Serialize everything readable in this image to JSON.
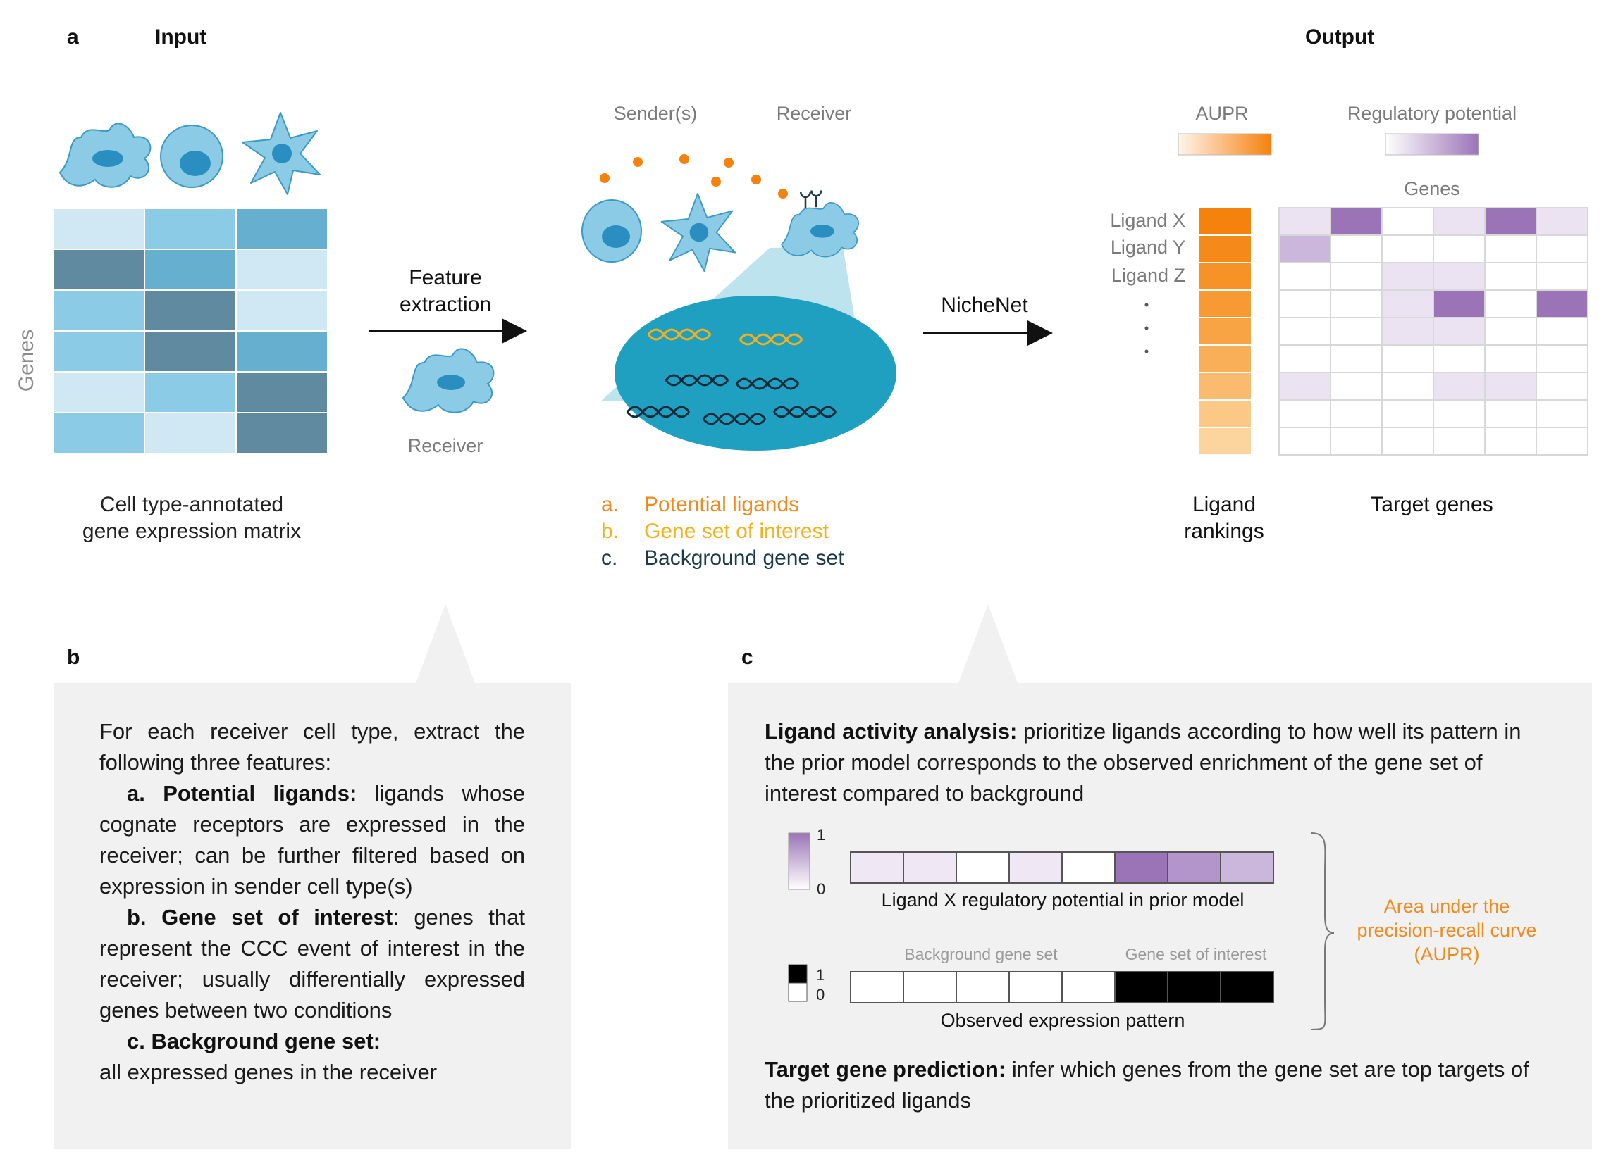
{
  "panel_a": {
    "letter": "a",
    "input_title": "Input",
    "output_title": "Output",
    "genes_axis": "Genes",
    "matrix_caption_1": "Cell type-annotated",
    "matrix_caption_2": "gene expression matrix",
    "feature_extraction_1": "Feature",
    "feature_extraction_2": "extraction",
    "receiver_label": "Receiver",
    "senders_label": "Sender(s)",
    "receiver_label_2": "Receiver",
    "nichenet_label": "NicheNet",
    "features": [
      {
        "idx": "a.",
        "text": "Potential ligands",
        "color": "#f08a1e"
      },
      {
        "idx": "b.",
        "text": "Gene set of interest",
        "color": "#f5b01c"
      },
      {
        "idx": "c.",
        "text": "Background gene set",
        "color": "#1b3a4b"
      }
    ],
    "aupr_label": "AUPR",
    "reg_potential_label": "Regulatory potential",
    "genes_label": "Genes",
    "ligands": [
      "Ligand X",
      "Ligand Y",
      "Ligand Z"
    ],
    "ligand_rankings_1": "Ligand",
    "ligand_rankings_2": "rankings",
    "target_genes_label": "Target genes",
    "heatmap_levels": [
      [
        1,
        3,
        0,
        1,
        3,
        1
      ],
      [
        2,
        0,
        0,
        0,
        0,
        0
      ],
      [
        0,
        0,
        1,
        1,
        0,
        0
      ],
      [
        0,
        0,
        1,
        3,
        0,
        3
      ],
      [
        0,
        0,
        1,
        1,
        0,
        0
      ],
      [
        0,
        0,
        0,
        0,
        0,
        0
      ],
      [
        1,
        0,
        0,
        1,
        1,
        0
      ],
      [
        0,
        0,
        0,
        0,
        0,
        0
      ],
      [
        0,
        0,
        0,
        0,
        0,
        0
      ]
    ],
    "colors": {
      "orange": "#f5820d",
      "purple": "#9b74b8",
      "teal": "#22a0c4"
    }
  },
  "panel_b": {
    "letter": "b",
    "intro": "For each receiver cell type, extract the following three features:",
    "a_title": "a. Potential ligands:",
    "a_text": "ligands whose cognate receptors are expressed in the receiver; can be further filtered based on expression in sender cell type(s)",
    "b_title": "b. Gene set of interest",
    "b_text": ": genes that represent the CCC event of interest in the receiver; usually differentially expressed genes between two conditions",
    "c_title": "c. Background gene set:",
    "c_text": "all expressed genes in the receiver"
  },
  "panel_c": {
    "letter": "c",
    "lig_activity_title": "Ligand activity analysis:",
    "lig_activity_text": "prioritize ligands according to how well its pattern in the prior model corresponds to the observed enrichment of the gene set of interest compared to background",
    "scale_one": "1",
    "scale_zero": "0",
    "bin_one": "1",
    "bin_zero": "0",
    "reg_caption": "Ligand X regulatory potential in prior model",
    "background_label": "Background gene set",
    "interest_label": "Gene set of interest",
    "observed_caption": "Observed expression pattern",
    "aupr_text_1": "Area under the",
    "aupr_text_2": "precision-recall curve",
    "aupr_text_3": "(AUPR)",
    "target_title": "Target gene prediction:",
    "target_text": "infer which genes from the gene set are top targets of the prioritized ligands",
    "reg_levels": [
      1,
      1,
      0,
      1,
      0,
      4,
      3,
      2
    ],
    "observed": [
      0,
      0,
      0,
      0,
      0,
      1,
      1,
      1
    ]
  }
}
